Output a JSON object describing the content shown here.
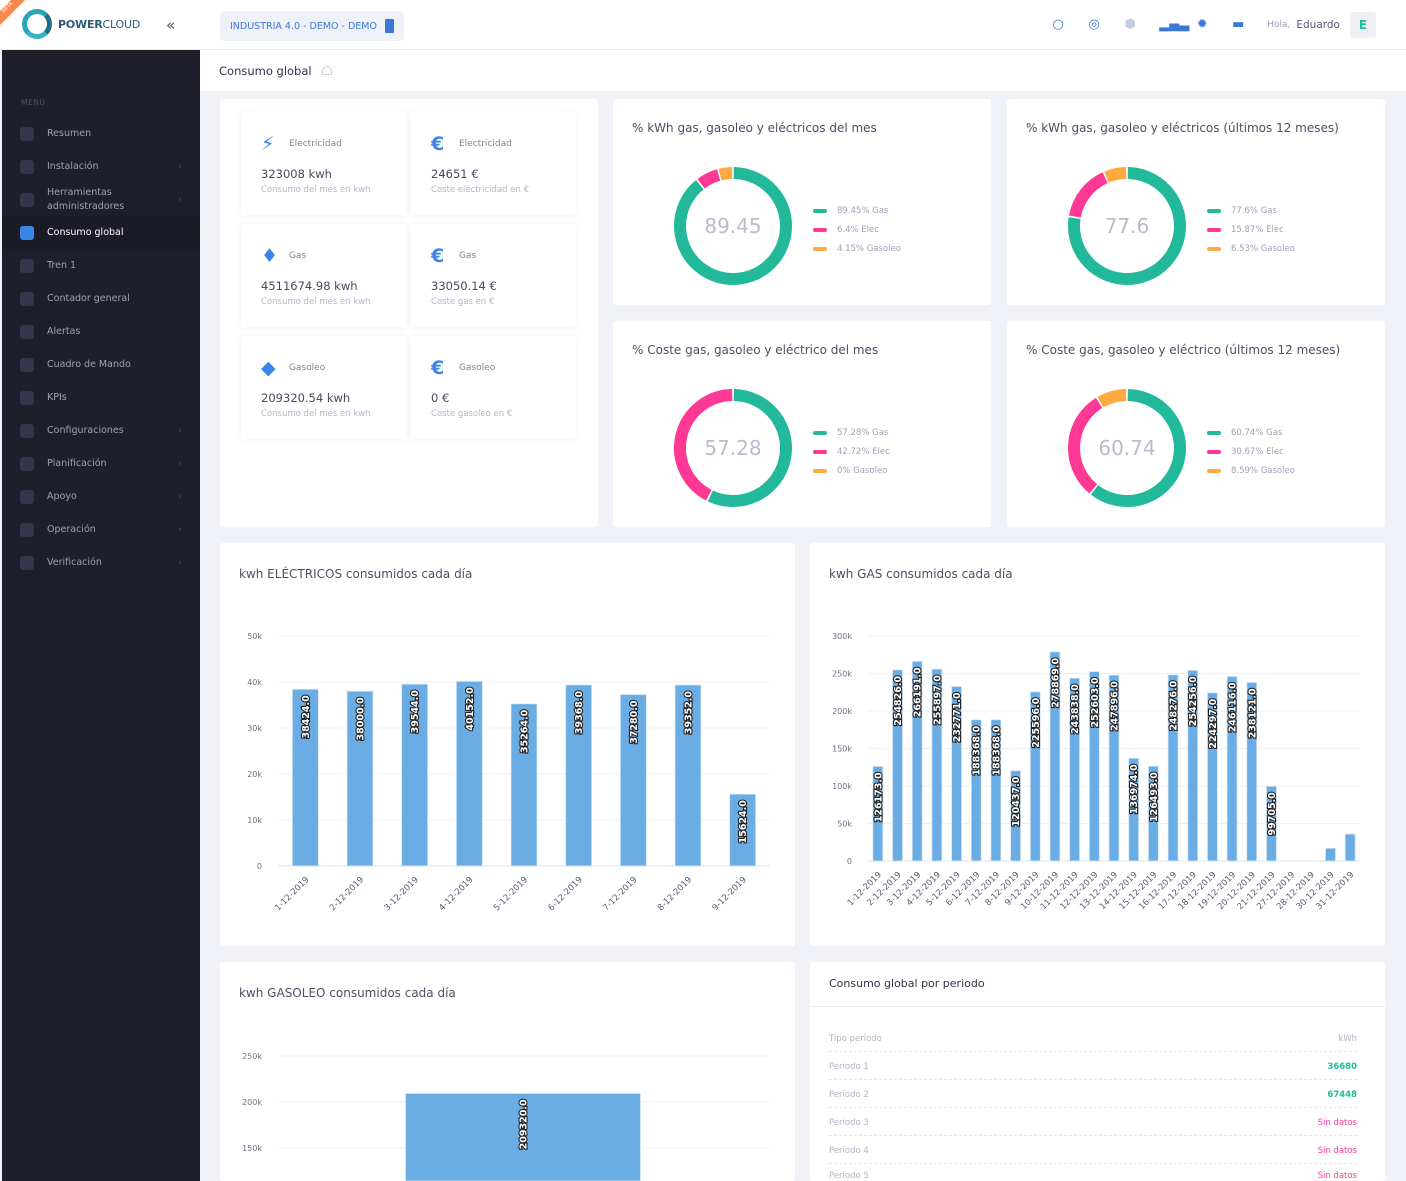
{
  "header": {
    "brand": "POWERCLOUD",
    "brand_power": "POWER",
    "brand_cloud": "CLOUD",
    "badge": "BETA",
    "company": "INDUSTRIA 4.0 - DEMO - DEMO",
    "greeting": "Hola,",
    "user": "Eduardo",
    "avatar_letter": "E",
    "icons": [
      "search-icon",
      "support-icon",
      "cube-icon",
      "bar-chart-icon",
      "gear-icon",
      "unlock-icon"
    ]
  },
  "sidebar": {
    "heading": "MENÚ",
    "items": [
      {
        "label": "Resumen",
        "chevron": false
      },
      {
        "label": "Instalación",
        "chevron": true
      },
      {
        "label": "Herramientas administradores",
        "chevron": true
      },
      {
        "label": "Consumo global",
        "chevron": false,
        "active": true
      },
      {
        "label": "Tren 1",
        "chevron": false
      },
      {
        "label": "Contador general",
        "chevron": false
      },
      {
        "label": "Alertas",
        "chevron": false
      },
      {
        "label": "Cuadro de Mando",
        "chevron": false
      },
      {
        "label": "KPIs",
        "chevron": false
      },
      {
        "label": "Configuraciones",
        "chevron": true
      },
      {
        "label": "Planificación",
        "chevron": true
      },
      {
        "label": "Apoyo",
        "chevron": true
      },
      {
        "label": "Operación",
        "chevron": true
      },
      {
        "label": "Verificación",
        "chevron": true
      }
    ]
  },
  "page": {
    "title": "Consumo global"
  },
  "kpis": [
    {
      "label": "Electricidad",
      "value": "323008 kwh",
      "sub": "Consumo del mes en kwh",
      "icon": "lightning-icon"
    },
    {
      "label": "Electricidad",
      "value": "24651 €",
      "sub": "Coste electricidad en €",
      "icon": "euro-icon"
    },
    {
      "label": "Gas",
      "value": "4511674.98 kwh",
      "sub": "Consumo del mes en kwh",
      "icon": "flame-icon"
    },
    {
      "label": "Gas",
      "value": "33050.14 €",
      "sub": "Coste gas en €",
      "icon": "euro-icon"
    },
    {
      "label": "Gasoleo",
      "value": "209320.54 kwh",
      "sub": "Consumo del mes en kwh",
      "icon": "fuel-bucket-icon"
    },
    {
      "label": "Gasoleo",
      "value": "0 €",
      "sub": "Coste gasoleo en €",
      "icon": "euro-icon"
    }
  ],
  "colors": {
    "gas": "#22b99a",
    "elec": "#fd3995",
    "gasoleo": "#ffa940",
    "bar": "#6aace4",
    "accent": "#3a86e8"
  },
  "table": {
    "title": "Consumo global por periodo",
    "col1": "Tipo periodo",
    "col2": "kWh",
    "rows": [
      {
        "periodo": "Periodo 1",
        "value": "36680",
        "status": "ok"
      },
      {
        "periodo": "Periodo 2",
        "value": "67448",
        "status": "ok"
      },
      {
        "periodo": "Periodo 3",
        "value": "Sin datos",
        "status": "none"
      },
      {
        "periodo": "Periodo 4",
        "value": "Sin datos",
        "status": "none"
      },
      {
        "periodo": "Periodo 5",
        "value": "Sin datos",
        "status": "none"
      }
    ]
  },
  "chart_data": [
    {
      "type": "pie",
      "title": "% kWh gas, gasoleo y eléctricos del mes",
      "center": "89.45",
      "slices": [
        {
          "name": "Gas",
          "value": 89.45,
          "label": "89.45% Gas"
        },
        {
          "name": "Elec",
          "value": 6.4,
          "label": "6.4% Elec"
        },
        {
          "name": "Gasoleo",
          "value": 4.15,
          "label": "4.15% Gasoleo"
        }
      ]
    },
    {
      "type": "pie",
      "title": "% kWh gas, gasoleo y eléctricos (últimos 12 meses)",
      "center": "77.6",
      "slices": [
        {
          "name": "Gas",
          "value": 77.6,
          "label": "77.6% Gas"
        },
        {
          "name": "Elec",
          "value": 15.87,
          "label": "15.87% Elec"
        },
        {
          "name": "Gasoleo",
          "value": 6.53,
          "label": "6.53% Gasoleo"
        }
      ]
    },
    {
      "type": "pie",
      "title": "% Coste gas, gasoleo y eléctrico del mes",
      "center": "57.28",
      "slices": [
        {
          "name": "Gas",
          "value": 57.28,
          "label": "57.28% Gas"
        },
        {
          "name": "Elec",
          "value": 42.72,
          "label": "42.72% Elec"
        },
        {
          "name": "Gasoleo",
          "value": 0,
          "label": "0% Gasoleo"
        }
      ]
    },
    {
      "type": "pie",
      "title": "% Coste gas, gasoleo y eléctrico (últimos 12 meses)",
      "center": "60.74",
      "slices": [
        {
          "name": "Gas",
          "value": 60.74,
          "label": "60.74% Gas"
        },
        {
          "name": "Elec",
          "value": 30.67,
          "label": "30.67% Elec"
        },
        {
          "name": "Gasoleo",
          "value": 8.59,
          "label": "8.59% Gasoleo"
        }
      ]
    },
    {
      "type": "bar",
      "title": "kwh ELÉCTRICOS consumidos cada día",
      "ylim": [
        0,
        50000
      ],
      "yticks": [
        0,
        10000,
        20000,
        30000,
        40000,
        50000
      ],
      "ytick_labels": [
        "0",
        "10k",
        "20k",
        "30k",
        "40k",
        "50k"
      ],
      "categories": [
        "1-12-2019",
        "2-12-2019",
        "3-12-2019",
        "4-12-2019",
        "5-12-2019",
        "6-12-2019",
        "7-12-2019",
        "8-12-2019",
        "9-12-2019"
      ],
      "values": [
        38424,
        38000,
        39544,
        40152,
        35264,
        39368,
        37280,
        39352,
        15624
      ],
      "data_labels": [
        "38424.0",
        "38000.0",
        "39544.0",
        "40152.0",
        "35264.0",
        "39368.0",
        "37280.0",
        "39352.0",
        "15624.0"
      ]
    },
    {
      "type": "bar",
      "title": "kwh GAS consumidos cada día",
      "ylim": [
        0,
        300000
      ],
      "yticks": [
        0,
        50000,
        100000,
        150000,
        200000,
        250000,
        300000
      ],
      "ytick_labels": [
        "0",
        "50k",
        "100k",
        "150k",
        "200k",
        "250k",
        "300k"
      ],
      "categories": [
        "1-12-2019",
        "2-12-2019",
        "3-12-2019",
        "4-12-2019",
        "5-12-2019",
        "6-12-2019",
        "7-12-2019",
        "8-12-2019",
        "9-12-2019",
        "10-12-2019",
        "11-12-2019",
        "12-12-2019",
        "13-12-2019",
        "14-12-2019",
        "15-12-2019",
        "16-12-2019",
        "17-12-2019",
        "18-12-2019",
        "19-12-2019",
        "20-12-2019",
        "21-12-2019",
        "27-12-2019",
        "28-12-2019",
        "30-12-2019",
        "31-12-2019"
      ],
      "values": [
        126173,
        254826,
        266191,
        255897,
        232771,
        188368,
        188368,
        120437,
        225596,
        278869,
        243838,
        252603,
        247896,
        136974,
        126493,
        248276,
        254256,
        224297,
        246116,
        238121,
        99705,
        0,
        0,
        17000,
        36000
      ],
      "data_labels": [
        "126173.0",
        "254826.0",
        "266191.0",
        "255897.0",
        "232771.0",
        "188368.0",
        "188368.0",
        "120437.0",
        "225596.0",
        "278869.0",
        "243838.0",
        "252603.0",
        "247896.0",
        "136974.0",
        "126493.0",
        "248276.0",
        "254256.0",
        "224297.0",
        "246116.0",
        "238121.0",
        "99705.0",
        "",
        "",
        "",
        ""
      ]
    },
    {
      "type": "bar",
      "title": "kwh GASOLEO consumidos cada día",
      "ylim": [
        0,
        250000
      ],
      "yticks": [
        150000,
        200000,
        250000
      ],
      "ytick_labels": [
        "150k",
        "200k",
        "250k"
      ],
      "values": [
        209320
      ],
      "data_labels": [
        "209320.0"
      ]
    }
  ]
}
